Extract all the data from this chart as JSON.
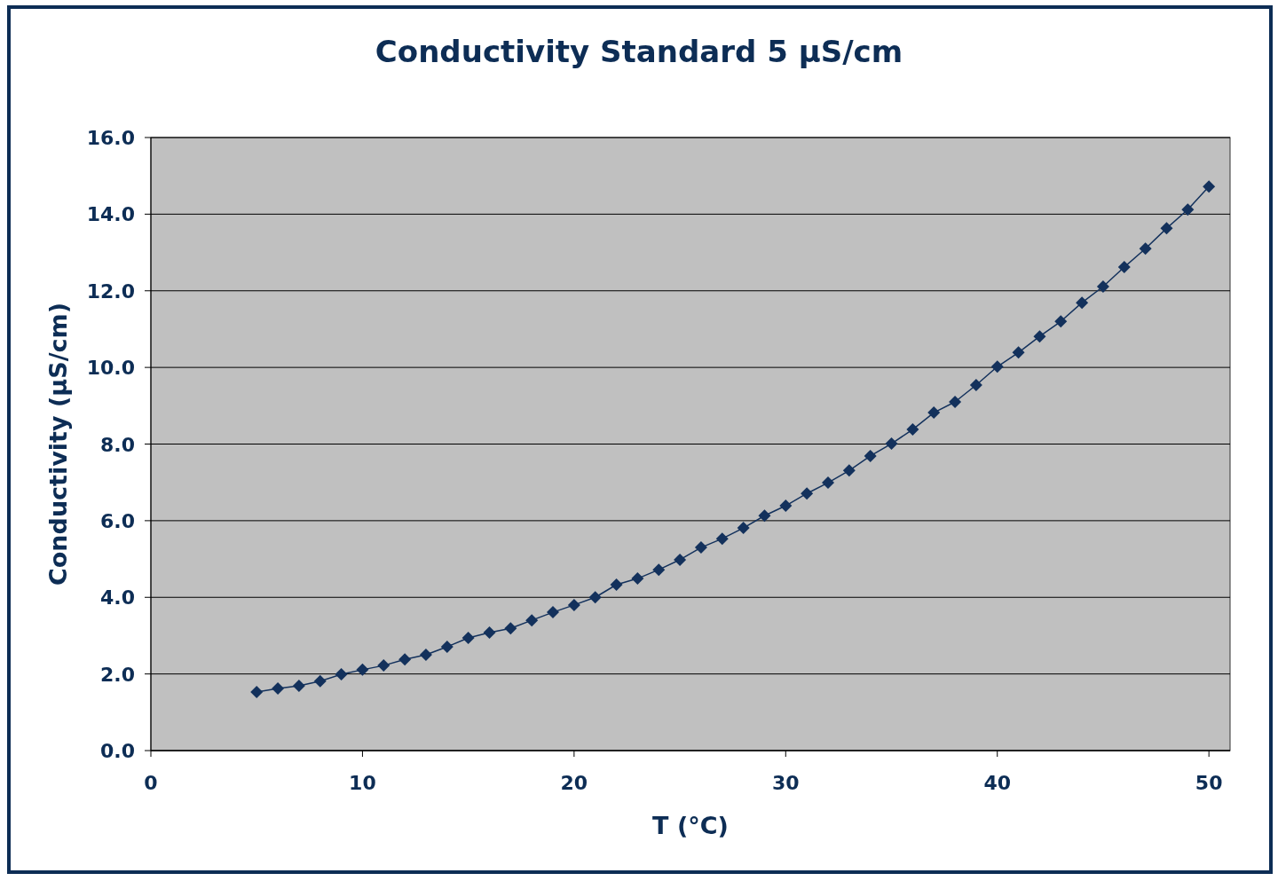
{
  "chart_data": {
    "type": "line",
    "title": "Conductivity Standard 5 µS/cm",
    "xlabel": "T (°C)",
    "ylabel": "Conductivity (µS/cm)",
    "x": [
      5,
      6,
      7,
      8,
      9,
      10,
      11,
      12,
      13,
      14,
      15,
      16,
      17,
      18,
      19,
      20,
      21,
      22,
      23,
      24,
      25,
      26,
      27,
      28,
      29,
      30,
      31,
      32,
      33,
      34,
      35,
      36,
      37,
      38,
      39,
      40,
      41,
      42,
      43,
      44,
      45,
      46,
      47,
      48,
      49,
      50
    ],
    "series": [
      {
        "color": "#13315c",
        "values": [
          1.53,
          1.62,
          1.69,
          1.81,
          1.99,
          2.11,
          2.22,
          2.38,
          2.5,
          2.71,
          2.94,
          3.08,
          3.19,
          3.4,
          3.61,
          3.8,
          4.0,
          4.33,
          4.49,
          4.72,
          4.98,
          5.3,
          5.53,
          5.81,
          6.13,
          6.39,
          6.71,
          6.99,
          7.31,
          7.69,
          8.01,
          8.38,
          8.82,
          9.1,
          9.54,
          10.02,
          10.39,
          10.81,
          11.2,
          11.69,
          12.11,
          12.62,
          13.1,
          13.63,
          14.12,
          14.72
        ]
      }
    ],
    "xlim": [
      0,
      51
    ],
    "xticks": [
      0,
      10,
      20,
      30,
      40,
      50
    ],
    "ylim": [
      0,
      16
    ],
    "yticks": [
      {
        "value": 0,
        "label": "0.0"
      },
      {
        "value": 2,
        "label": "2.0"
      },
      {
        "value": 4,
        "label": "4.0"
      },
      {
        "value": 6,
        "label": "6.0"
      },
      {
        "value": 8,
        "label": "8.0"
      },
      {
        "value": 10,
        "label": "10.0"
      },
      {
        "value": 12,
        "label": "12.0"
      },
      {
        "value": 14,
        "label": "14.0"
      },
      {
        "value": 16,
        "label": "16.0"
      }
    ],
    "grid": "y",
    "marker": "diamond",
    "line_style": "solid"
  }
}
